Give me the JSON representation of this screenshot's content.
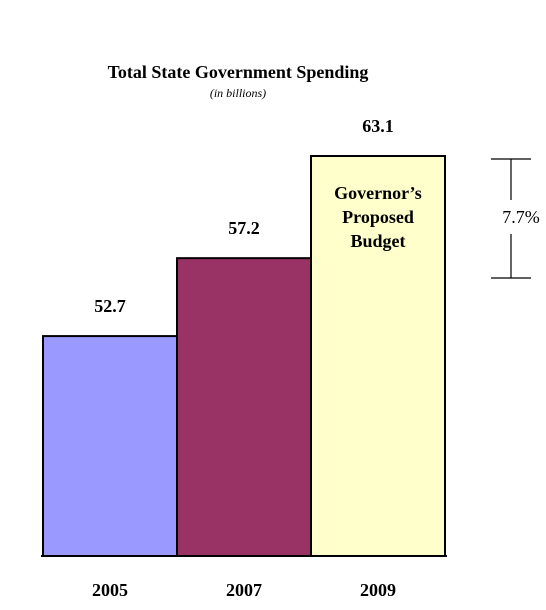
{
  "chart_data": {
    "type": "bar",
    "title": "Total State Government Spending",
    "subtitle": "(in billions)",
    "categories": [
      "2005",
      "2007",
      "2009"
    ],
    "values": [
      52.7,
      57.2,
      63.1
    ],
    "value_labels": [
      "52.7",
      "57.2",
      "63.1"
    ],
    "colors": [
      "#9999ff",
      "#993366",
      "#ffffcc"
    ],
    "bar_annotation": {
      "category": "2009",
      "lines": [
        "Governor’s",
        "Proposed",
        "Budget"
      ]
    },
    "change_label": "7.7%",
    "ylim": [
      40,
      65
    ],
    "grid": false,
    "legend": "none"
  }
}
